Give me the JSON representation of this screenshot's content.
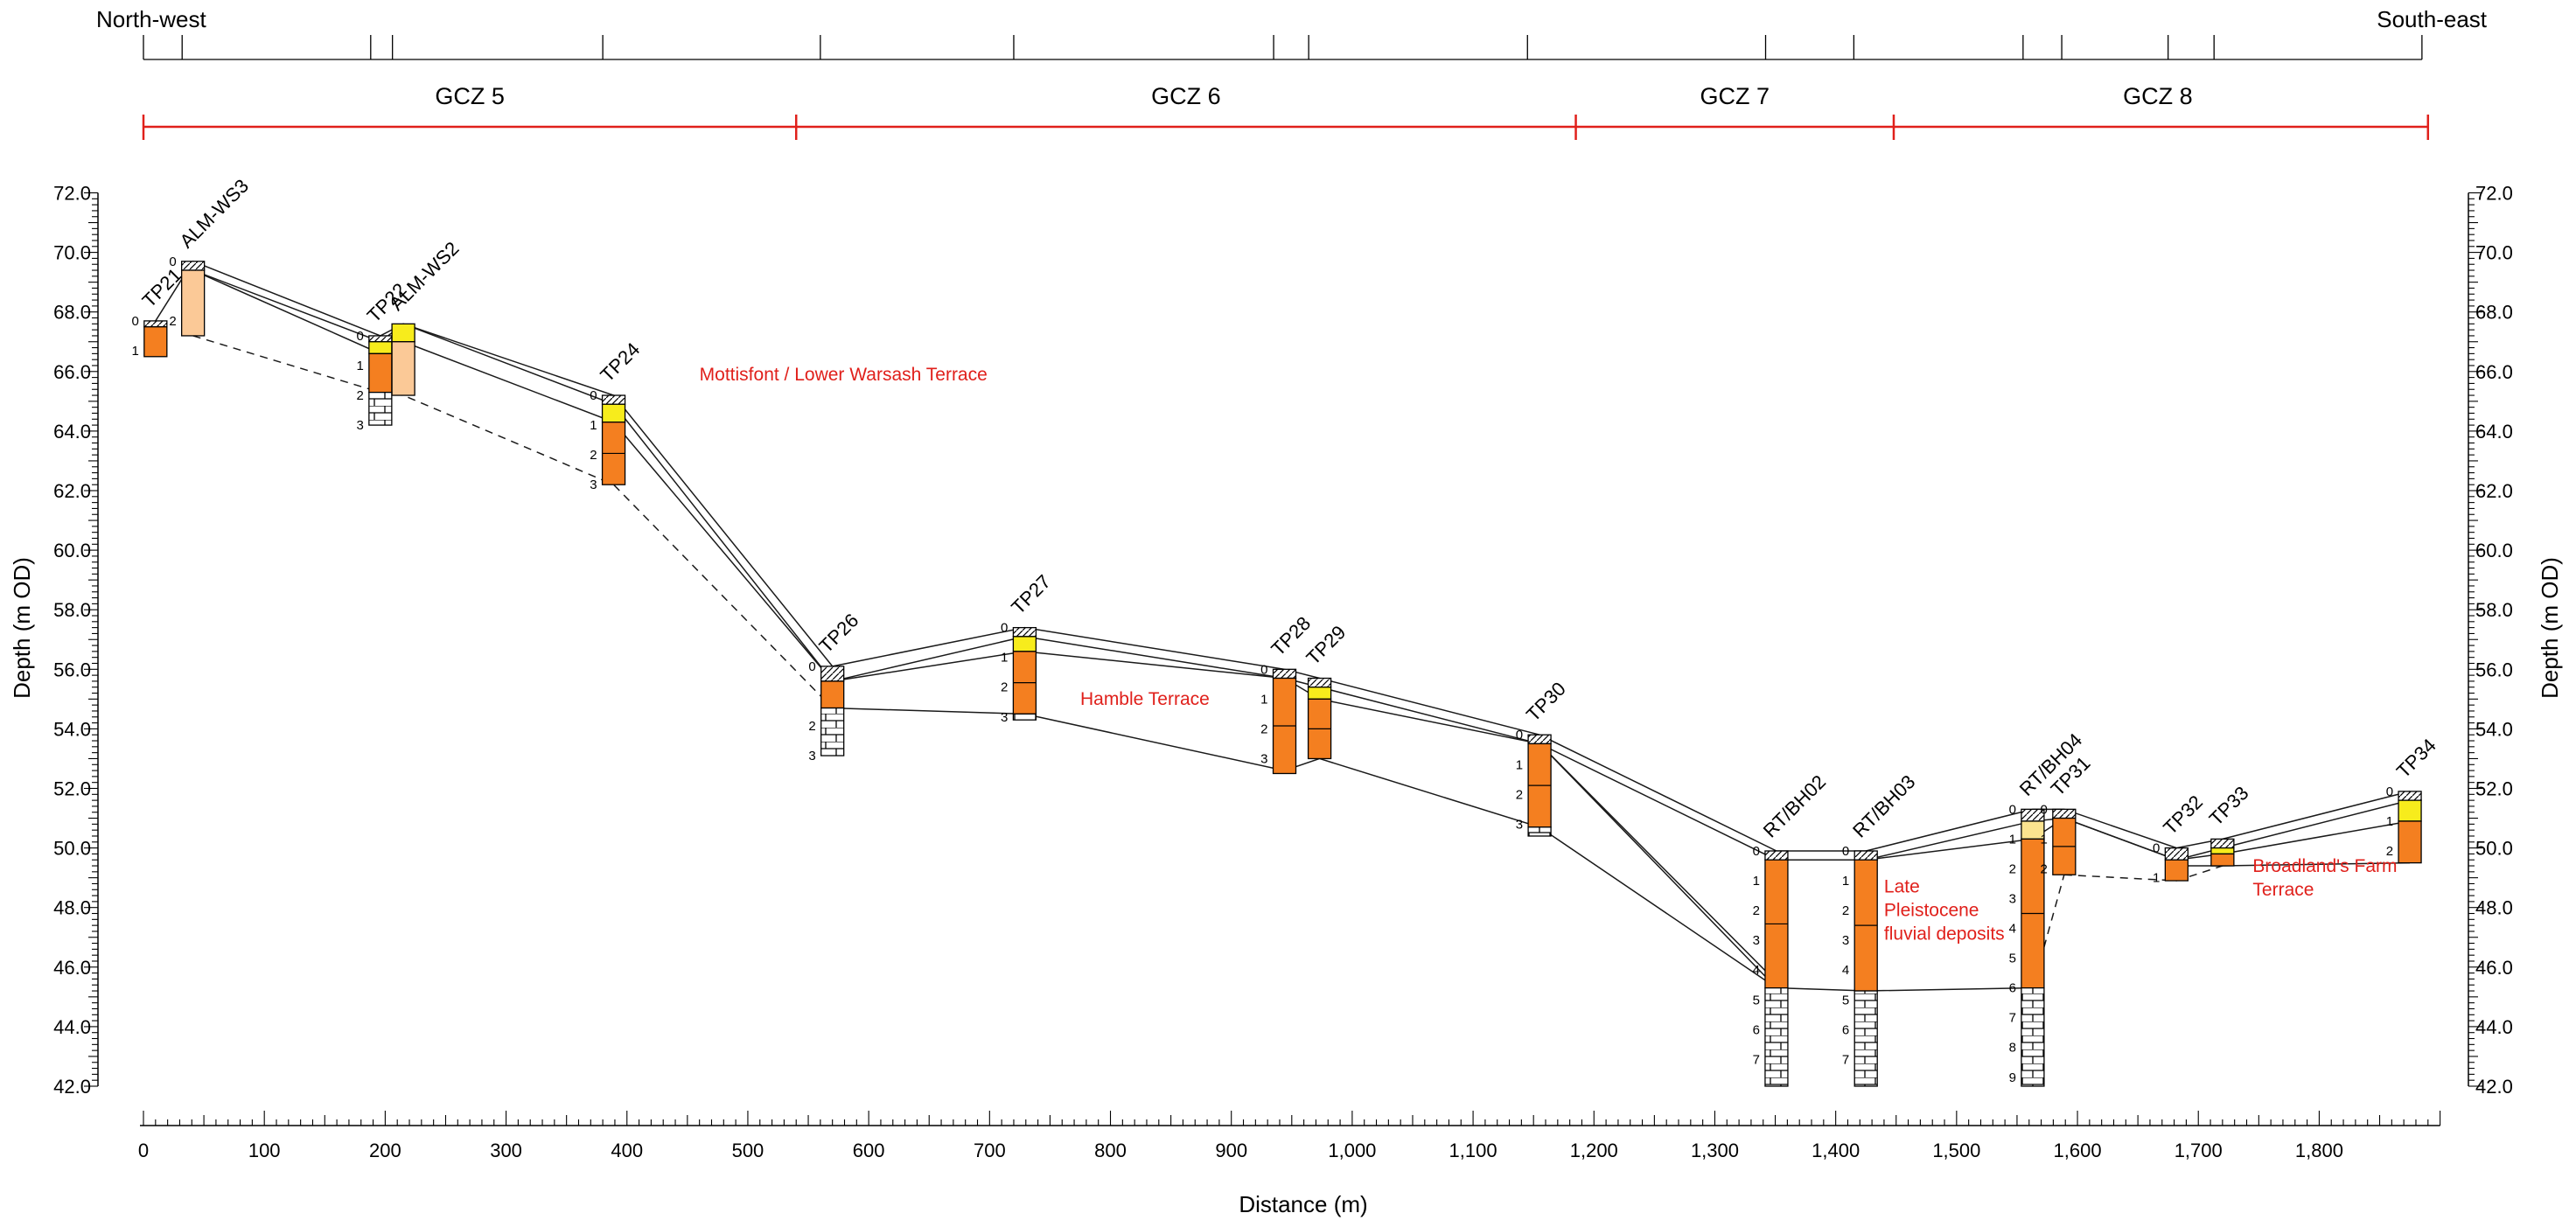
{
  "header": {
    "left_label": "North-west",
    "right_label": "South-east"
  },
  "zones": [
    {
      "label": "GCZ 5",
      "from": 0,
      "to": 540
    },
    {
      "label": "GCZ 6",
      "from": 540,
      "to": 1185
    },
    {
      "label": "GCZ 7",
      "from": 1185,
      "to": 1448
    },
    {
      "label": "GCZ 8",
      "from": 1448,
      "to": 1885
    }
  ],
  "colors": {
    "zone_red": "#e0201b",
    "gravel_orange": "#f47f20",
    "pale_orange": "#fbc997",
    "yellow": "#f7ec1c",
    "pale_yellow": "#fbe38f",
    "chalk": "#ffffff",
    "annotation_red": "#e0201b"
  },
  "axes": {
    "left_ylabel": "Depth (m OD)",
    "right_ylabel": "Depth (m OD)",
    "xlabel": "Distance (m)",
    "ylim": [
      42.0,
      72.0
    ],
    "xlim": [
      0,
      1900
    ],
    "ytick_labels": [
      "42.0",
      "44.0",
      "46.0",
      "48.0",
      "50.0",
      "52.0",
      "54.0",
      "56.0",
      "58.0",
      "60.0",
      "62.0",
      "64.0",
      "66.0",
      "68.0",
      "70.0",
      "72.0"
    ],
    "xtick_labels": [
      "0",
      "100",
      "200",
      "300",
      "400",
      "500",
      "600",
      "700",
      "800",
      "900",
      "1,000",
      "1,100",
      "1,200",
      "1,300",
      "1,400",
      "1,500",
      "1,600",
      "1,700",
      "1,800"
    ]
  },
  "top_ruler_ticks": [
    32,
    188,
    206,
    380,
    560,
    720,
    935,
    964,
    1145,
    1342,
    1415,
    1555,
    1587,
    1675,
    1713,
    1885
  ],
  "boreholes": [
    {
      "name": "TP21",
      "x": 10,
      "top": 67.7,
      "layers": [
        {
          "t": 67.7,
          "b": 67.5,
          "k": "made"
        },
        {
          "t": 67.5,
          "b": 66.5,
          "k": "orange"
        }
      ],
      "depths": [
        {
          "n": "0",
          "z": 67.7
        },
        {
          "n": "1",
          "z": 66.7
        }
      ]
    },
    {
      "name": "ALM-WS3",
      "x": 41,
      "top": 69.7,
      "layers": [
        {
          "t": 69.7,
          "b": 69.4,
          "k": "made"
        },
        {
          "t": 69.4,
          "b": 67.2,
          "k": "pale"
        }
      ],
      "depths": [
        {
          "n": "0",
          "z": 69.7
        },
        {
          "n": "2",
          "z": 67.7
        }
      ]
    },
    {
      "name": "TP22",
      "x": 196,
      "top": 67.2,
      "layers": [
        {
          "t": 67.2,
          "b": 67.0,
          "k": "made"
        },
        {
          "t": 67.0,
          "b": 66.6,
          "k": "yellow"
        },
        {
          "t": 66.6,
          "b": 65.3,
          "k": "orange"
        },
        {
          "t": 65.3,
          "b": 64.2,
          "k": "chalk"
        }
      ],
      "depths": [
        {
          "n": "0",
          "z": 67.2
        },
        {
          "n": "1",
          "z": 66.2
        },
        {
          "n": "2",
          "z": 65.2
        },
        {
          "n": "3",
          "z": 64.2
        }
      ]
    },
    {
      "name": "ALM-WS2",
      "x": 215,
      "top": 67.6,
      "layers": [
        {
          "t": 67.6,
          "b": 67.0,
          "k": "yellow"
        },
        {
          "t": 67.0,
          "b": 65.2,
          "k": "pale"
        }
      ],
      "depths": []
    },
    {
      "name": "TP24",
      "x": 389,
      "top": 65.2,
      "layers": [
        {
          "t": 65.2,
          "b": 64.9,
          "k": "made"
        },
        {
          "t": 64.9,
          "b": 64.3,
          "k": "yellow"
        },
        {
          "t": 64.3,
          "b": 62.2,
          "k": "orange"
        }
      ],
      "depths": [
        {
          "n": "0",
          "z": 65.2
        },
        {
          "n": "1",
          "z": 64.2
        },
        {
          "n": "2",
          "z": 63.2
        },
        {
          "n": "3",
          "z": 62.2
        }
      ]
    },
    {
      "name": "TP26",
      "x": 570,
      "top": 56.1,
      "layers": [
        {
          "t": 56.1,
          "b": 55.6,
          "k": "made"
        },
        {
          "t": 55.6,
          "b": 54.7,
          "k": "orange"
        },
        {
          "t": 54.7,
          "b": 53.1,
          "k": "chalk"
        }
      ],
      "depths": [
        {
          "n": "0",
          "z": 56.1
        },
        {
          "n": "2",
          "z": 54.1
        },
        {
          "n": "3",
          "z": 53.1
        }
      ]
    },
    {
      "name": "TP27",
      "x": 729,
      "top": 57.4,
      "layers": [
        {
          "t": 57.4,
          "b": 57.1,
          "k": "made"
        },
        {
          "t": 57.1,
          "b": 56.6,
          "k": "yellow"
        },
        {
          "t": 56.6,
          "b": 54.5,
          "k": "orange"
        },
        {
          "t": 54.5,
          "b": 54.3,
          "k": "chalk"
        }
      ],
      "depths": [
        {
          "n": "0",
          "z": 57.4
        },
        {
          "n": "1",
          "z": 56.4
        },
        {
          "n": "2",
          "z": 55.4
        },
        {
          "n": "3",
          "z": 54.4
        }
      ]
    },
    {
      "name": "TP28",
      "x": 944,
      "top": 56.0,
      "layers": [
        {
          "t": 56.0,
          "b": 55.7,
          "k": "made"
        },
        {
          "t": 55.7,
          "b": 52.5,
          "k": "orange"
        }
      ],
      "depths": [
        {
          "n": "0",
          "z": 56.0
        },
        {
          "n": "1",
          "z": 55.0
        },
        {
          "n": "2",
          "z": 54.0
        },
        {
          "n": "3",
          "z": 53.0
        }
      ]
    },
    {
      "name": "TP29",
      "x": 973,
      "top": 55.7,
      "layers": [
        {
          "t": 55.7,
          "b": 55.4,
          "k": "made"
        },
        {
          "t": 55.4,
          "b": 55.0,
          "k": "yellow"
        },
        {
          "t": 55.0,
          "b": 53.0,
          "k": "orange"
        }
      ],
      "depths": []
    },
    {
      "name": "TP30",
      "x": 1155,
      "top": 53.8,
      "layers": [
        {
          "t": 53.8,
          "b": 53.5,
          "k": "made"
        },
        {
          "t": 53.5,
          "b": 50.7,
          "k": "orange"
        },
        {
          "t": 50.7,
          "b": 50.4,
          "k": "chalk"
        }
      ],
      "depths": [
        {
          "n": "0",
          "z": 53.8
        },
        {
          "n": "1",
          "z": 52.8
        },
        {
          "n": "2",
          "z": 51.8
        },
        {
          "n": "3",
          "z": 50.8
        }
      ]
    },
    {
      "name": "RT/BH02",
      "x": 1351,
      "top": 49.9,
      "layers": [
        {
          "t": 49.9,
          "b": 49.6,
          "k": "made"
        },
        {
          "t": 49.6,
          "b": 45.3,
          "k": "orange"
        },
        {
          "t": 45.3,
          "b": 42.0,
          "k": "chalk"
        }
      ],
      "depths": [
        {
          "n": "0",
          "z": 49.9
        },
        {
          "n": "1",
          "z": 48.9
        },
        {
          "n": "2",
          "z": 47.9
        },
        {
          "n": "3",
          "z": 46.9
        },
        {
          "n": "4",
          "z": 45.9
        },
        {
          "n": "5",
          "z": 44.9
        },
        {
          "n": "6",
          "z": 43.9
        },
        {
          "n": "7",
          "z": 42.9
        }
      ]
    },
    {
      "name": "RT/BH03",
      "x": 1425,
      "top": 49.9,
      "layers": [
        {
          "t": 49.9,
          "b": 49.6,
          "k": "made"
        },
        {
          "t": 49.6,
          "b": 45.2,
          "k": "orange"
        },
        {
          "t": 45.2,
          "b": 42.0,
          "k": "chalk"
        }
      ],
      "depths": [
        {
          "n": "0",
          "z": 49.9
        },
        {
          "n": "1",
          "z": 48.9
        },
        {
          "n": "2",
          "z": 47.9
        },
        {
          "n": "3",
          "z": 46.9
        },
        {
          "n": "4",
          "z": 45.9
        },
        {
          "n": "5",
          "z": 44.9
        },
        {
          "n": "6",
          "z": 43.9
        },
        {
          "n": "7",
          "z": 42.9
        }
      ]
    },
    {
      "name": "RT/BH04",
      "x": 1563,
      "top": 51.3,
      "layers": [
        {
          "t": 51.3,
          "b": 50.9,
          "k": "made"
        },
        {
          "t": 50.9,
          "b": 50.3,
          "k": "paleyellow"
        },
        {
          "t": 50.3,
          "b": 45.3,
          "k": "orange"
        },
        {
          "t": 45.3,
          "b": 42.0,
          "k": "chalk"
        }
      ],
      "depths": [
        {
          "n": "0",
          "z": 51.3
        },
        {
          "n": "1",
          "z": 50.3
        },
        {
          "n": "2",
          "z": 49.3
        },
        {
          "n": "3",
          "z": 48.3
        },
        {
          "n": "4",
          "z": 47.3
        },
        {
          "n": "5",
          "z": 46.3
        },
        {
          "n": "6",
          "z": 45.3
        },
        {
          "n": "7",
          "z": 44.3
        },
        {
          "n": "8",
          "z": 43.3
        },
        {
          "n": "9",
          "z": 42.3
        }
      ]
    },
    {
      "name": "TP31",
      "x": 1589,
      "top": 51.3,
      "layers": [
        {
          "t": 51.3,
          "b": 51.0,
          "k": "made"
        },
        {
          "t": 51.0,
          "b": 49.1,
          "k": "orange"
        }
      ],
      "depths": [
        {
          "n": "0",
          "z": 51.3
        },
        {
          "n": "1",
          "z": 50.3
        },
        {
          "n": "2",
          "z": 49.3
        }
      ]
    },
    {
      "name": "TP32",
      "x": 1682,
      "top": 50.0,
      "layers": [
        {
          "t": 50.0,
          "b": 49.6,
          "k": "made"
        },
        {
          "t": 49.6,
          "b": 48.9,
          "k": "orange"
        }
      ],
      "depths": [
        {
          "n": "0",
          "z": 50.0
        },
        {
          "n": "1",
          "z": 49.0
        }
      ]
    },
    {
      "name": "TP33",
      "x": 1720,
      "top": 50.3,
      "layers": [
        {
          "t": 50.3,
          "b": 50.0,
          "k": "made"
        },
        {
          "t": 50.0,
          "b": 49.8,
          "k": "yellow"
        },
        {
          "t": 49.8,
          "b": 49.4,
          "k": "orange"
        }
      ],
      "depths": []
    },
    {
      "name": "TP34",
      "x": 1875,
      "top": 51.9,
      "layers": [
        {
          "t": 51.9,
          "b": 51.6,
          "k": "made"
        },
        {
          "t": 51.6,
          "b": 50.9,
          "k": "yellow"
        },
        {
          "t": 50.9,
          "b": 49.5,
          "k": "orange"
        }
      ],
      "depths": [
        {
          "n": "0",
          "z": 51.9
        },
        {
          "n": "1",
          "z": 50.9
        },
        {
          "n": "2",
          "z": 49.9
        }
      ]
    }
  ],
  "correlation_lines": [
    [
      [
        10,
        67.7
      ],
      [
        41,
        69.7
      ],
      [
        196,
        67.2
      ],
      [
        215,
        67.6
      ],
      [
        389,
        65.2
      ],
      [
        570,
        56.1
      ],
      [
        729,
        57.4
      ],
      [
        944,
        56.0
      ],
      [
        973,
        55.7
      ],
      [
        1155,
        53.8
      ],
      [
        1351,
        49.9
      ],
      [
        1425,
        49.9
      ],
      [
        1563,
        51.3
      ],
      [
        1589,
        51.3
      ],
      [
        1682,
        50.0
      ],
      [
        1720,
        50.3
      ],
      [
        1875,
        51.9
      ]
    ],
    [
      [
        41,
        69.4
      ],
      [
        196,
        67.0
      ],
      [
        215,
        67.6
      ],
      [
        389,
        64.9
      ],
      [
        570,
        55.6
      ],
      [
        729,
        57.1
      ],
      [
        944,
        55.7
      ],
      [
        973,
        55.4
      ],
      [
        1155,
        53.5
      ],
      [
        1351,
        49.6
      ],
      [
        1425,
        49.6
      ],
      [
        1563,
        50.9
      ],
      [
        1589,
        51.0
      ],
      [
        1682,
        49.6
      ],
      [
        1720,
        50.0
      ],
      [
        1875,
        51.6
      ]
    ],
    [
      [
        41,
        69.4
      ],
      [
        196,
        66.6
      ],
      [
        215,
        67.0
      ],
      [
        389,
        64.3
      ],
      [
        570,
        55.6
      ],
      [
        729,
        56.6
      ],
      [
        944,
        55.7
      ],
      [
        973,
        55.0
      ],
      [
        1155,
        53.5
      ],
      [
        1351,
        45.3
      ]
    ],
    [
      [
        1425,
        49.6
      ],
      [
        1563,
        50.3
      ],
      [
        1589,
        51.0
      ],
      [
        1682,
        49.6
      ],
      [
        1720,
        49.8
      ],
      [
        1875,
        50.9
      ]
    ],
    [
      [
        570,
        54.7
      ],
      [
        729,
        54.5
      ],
      [
        944,
        52.6
      ],
      [
        973,
        53.0
      ],
      [
        1155,
        50.7
      ],
      [
        1351,
        45.3
      ],
      [
        1425,
        45.2
      ],
      [
        1563,
        45.3
      ]
    ],
    [
      [
        1155,
        53.5
      ],
      [
        1351,
        45.5
      ]
    ],
    [
      [
        1682,
        49.4
      ],
      [
        1720,
        49.4
      ],
      [
        1875,
        49.5
      ]
    ]
  ],
  "dashed_lines": [
    [
      [
        41,
        67.2
      ],
      [
        196,
        65.3
      ],
      [
        215,
        65.2
      ],
      [
        389,
        62.2
      ],
      [
        570,
        54.7
      ]
    ],
    [
      [
        1563,
        45.3
      ],
      [
        1589,
        49.1
      ]
    ],
    [
      [
        1589,
        49.1
      ],
      [
        1682,
        48.9
      ],
      [
        1720,
        49.4
      ]
    ]
  ],
  "annotations": [
    {
      "lines": [
        "Mottisfont / Lower Warsash Terrace"
      ],
      "x": 460,
      "z": 65.7
    },
    {
      "lines": [
        "Hamble Terrace"
      ],
      "x": 775,
      "z": 54.8
    },
    {
      "lines": [
        "Late",
        "Pleistocene",
        "fluvial deposits"
      ],
      "x": 1440,
      "z": 48.5
    },
    {
      "lines": [
        "Broadland's Farm",
        "Terrace"
      ],
      "x": 1745,
      "z": 49.2
    }
  ]
}
